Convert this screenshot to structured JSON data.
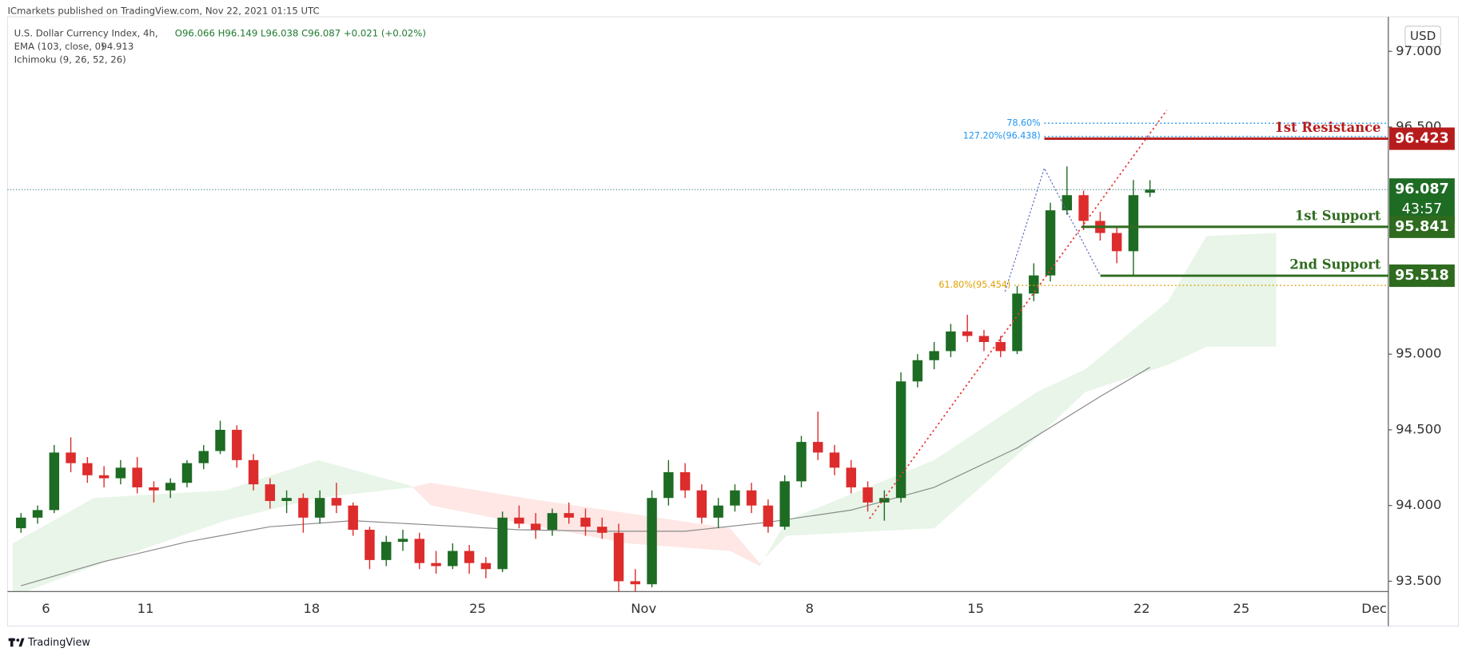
{
  "header": {
    "publisher": "ICmarkets published on TradingView.com, Nov 22, 2021 01:15 UTC",
    "symbol": "U.S. Dollar Currency Index, 4h,",
    "ohlc": "O96.066 H96.149 L96.038 C96.087 +0.021 (+0.02%)"
  },
  "footer": "TradingView",
  "chart_data": {
    "type": "candlestick",
    "currency": "USD",
    "categories": [
      null,
      null,
      "6",
      null,
      null,
      null,
      null,
      null,
      "11",
      null,
      null,
      null,
      null,
      null,
      null,
      null,
      null,
      null,
      "18",
      null,
      null,
      null,
      null,
      null,
      null,
      null,
      null,
      null,
      "25",
      null,
      null,
      null,
      null,
      null,
      null,
      null,
      null,
      null,
      "Nov",
      null,
      null,
      null,
      null,
      null,
      null,
      null,
      null,
      null,
      "8",
      null,
      null,
      null,
      null,
      null,
      null,
      null,
      null,
      null,
      "15",
      null,
      null,
      null,
      null,
      null,
      null,
      null,
      null,
      null,
      "22",
      null,
      null,
      null,
      null,
      null,
      "25",
      null,
      null,
      null,
      null,
      null,
      null,
      null,
      "Dec",
      null
    ],
    "open": [
      93.85,
      93.92,
      93.97,
      94.35,
      94.28,
      94.2,
      94.18,
      94.25,
      94.12,
      94.1,
      94.15,
      94.28,
      94.36,
      94.5,
      94.3,
      94.14,
      94.03,
      94.05,
      93.92,
      94.05,
      94.0,
      93.84,
      93.64,
      93.76,
      93.78,
      93.62,
      93.6,
      93.7,
      93.62,
      93.58,
      93.92,
      93.88,
      93.84,
      93.95,
      93.92,
      93.86,
      93.82,
      93.5,
      93.48,
      94.05,
      94.22,
      94.1,
      93.92,
      94.0,
      94.1,
      94.0,
      93.86,
      94.16,
      94.42,
      94.35,
      94.25,
      94.12,
      94.02,
      94.05,
      94.82,
      94.96,
      95.02,
      95.15,
      95.12,
      95.08,
      95.02,
      95.4,
      95.52,
      95.95,
      96.05,
      95.88,
      95.8,
      95.68,
      96.066,
      null,
      null,
      null,
      null,
      null,
      null,
      null,
      null,
      null,
      null,
      null,
      null,
      null,
      null,
      null
    ],
    "high": [
      93.95,
      94.0,
      94.4,
      94.45,
      94.32,
      94.26,
      94.3,
      94.32,
      94.16,
      94.18,
      94.3,
      94.4,
      94.56,
      94.53,
      94.34,
      94.18,
      94.1,
      94.08,
      94.1,
      94.15,
      94.02,
      93.86,
      93.8,
      93.84,
      93.82,
      93.7,
      93.75,
      93.74,
      93.66,
      93.96,
      94.0,
      93.95,
      93.98,
      94.02,
      93.98,
      93.92,
      93.88,
      93.58,
      94.1,
      94.3,
      94.28,
      94.14,
      94.05,
      94.14,
      94.15,
      94.04,
      94.2,
      94.46,
      94.62,
      94.4,
      94.3,
      94.16,
      94.1,
      94.88,
      95.0,
      95.08,
      95.2,
      95.26,
      95.16,
      95.12,
      95.45,
      95.6,
      96.0,
      96.24,
      96.08,
      95.94,
      95.84,
      96.15,
      96.149,
      null,
      null,
      null,
      null,
      null,
      null,
      null,
      null,
      null,
      null,
      null,
      null,
      null,
      null,
      null
    ],
    "low": [
      93.82,
      93.88,
      93.95,
      94.22,
      94.15,
      94.12,
      94.14,
      94.08,
      94.02,
      94.05,
      94.12,
      94.24,
      94.34,
      94.25,
      94.1,
      93.98,
      93.95,
      93.82,
      93.88,
      93.95,
      93.8,
      93.58,
      93.6,
      93.7,
      93.58,
      93.55,
      93.58,
      93.55,
      93.52,
      93.56,
      93.85,
      93.78,
      93.8,
      93.88,
      93.8,
      93.78,
      93.43,
      93.43,
      93.46,
      94.0,
      94.05,
      93.88,
      93.85,
      93.96,
      93.95,
      93.82,
      93.84,
      94.12,
      94.3,
      94.2,
      94.08,
      93.96,
      93.9,
      94.02,
      94.78,
      94.9,
      94.98,
      95.08,
      95.02,
      94.98,
      95.0,
      95.35,
      95.48,
      95.92,
      95.82,
      95.75,
      95.6,
      95.51,
      96.038,
      null,
      null,
      null,
      null,
      null,
      null,
      null,
      null,
      null,
      null,
      null,
      null,
      null,
      null,
      null
    ],
    "close": [
      93.92,
      93.97,
      94.35,
      94.28,
      94.2,
      94.18,
      94.25,
      94.12,
      94.1,
      94.15,
      94.28,
      94.36,
      94.5,
      94.3,
      94.14,
      94.03,
      94.05,
      93.92,
      94.05,
      94.0,
      93.84,
      93.64,
      93.76,
      93.78,
      93.62,
      93.6,
      93.7,
      93.62,
      93.58,
      93.92,
      93.88,
      93.84,
      93.95,
      93.92,
      93.86,
      93.82,
      93.5,
      93.48,
      94.05,
      94.22,
      94.1,
      93.92,
      94.0,
      94.1,
      94.0,
      93.86,
      94.16,
      94.42,
      94.35,
      94.25,
      94.12,
      94.02,
      94.05,
      94.82,
      94.96,
      95.02,
      95.15,
      95.12,
      95.08,
      95.02,
      95.4,
      95.52,
      95.95,
      96.05,
      95.88,
      95.8,
      95.68,
      96.05,
      96.087,
      null,
      null,
      null,
      null,
      null,
      null,
      null,
      null,
      null,
      null,
      null,
      null,
      null,
      null,
      null
    ],
    "up_color": "#1e6b24",
    "down_color": "#dd2c2c",
    "countdown": "43:57",
    "ylim": [
      93.432,
      97.228
    ],
    "yticks": [
      {
        "value": 93.5,
        "label": "93.500"
      },
      {
        "value": 94,
        "label": "94.000"
      },
      {
        "value": 94.5,
        "label": "94.500"
      },
      {
        "value": 95,
        "label": "95.000"
      },
      {
        "value": 96.5,
        "label": "96.500"
      },
      {
        "value": 97,
        "label": "97.000"
      }
    ],
    "ema": {
      "name": "EMA (103, close, 0)",
      "color": "#8a8a8a",
      "x": [
        0,
        5,
        10,
        15,
        20,
        25,
        30,
        35,
        40,
        45,
        50,
        55,
        60,
        65,
        68
      ],
      "values": [
        93.47,
        93.63,
        93.76,
        93.86,
        93.9,
        93.87,
        93.84,
        93.83,
        93.83,
        93.89,
        93.97,
        94.12,
        94.38,
        94.72,
        94.913
      ]
    },
    "ichimoku": {
      "name": "Ichimoku (9, 26, 52, 26)",
      "up_color": "#4caf50",
      "down_color": "#f44336",
      "x": [
        0,
        4.9,
        12.8,
        18.4,
        24,
        25.2,
        30.8,
        37,
        43.2,
        45,
        46.6,
        55.5,
        61.7,
        64.6,
        69.6,
        71.9,
        76.1
      ],
      "span_a": [
        93.75,
        94.05,
        94.1,
        94.3,
        94.13,
        94.0,
        93.88,
        93.75,
        93.7,
        93.6,
        93.9,
        94.3,
        94.75,
        94.9,
        95.35,
        95.78,
        95.8
      ],
      "span_b": [
        93.4,
        93.6,
        93.9,
        94.05,
        94.12,
        94.15,
        94.05,
        93.95,
        93.85,
        93.62,
        93.8,
        93.85,
        94.45,
        94.75,
        94.93,
        95.05,
        95.05
      ]
    },
    "levels": [
      {
        "label": "1st Resistance",
        "value": 96.423,
        "color": "#b71c1c"
      },
      {
        "label": "1st Support",
        "value": 95.841,
        "color": "#2e6b1f"
      },
      {
        "label": "2nd Support",
        "value": 95.518,
        "color": "#2e6b1f"
      }
    ],
    "fib": [
      {
        "label": "78.60%",
        "value": 96.525,
        "color": "#2196f3"
      },
      {
        "label": "127.20%(96.438)",
        "value": 96.438,
        "color": "#2196f3"
      },
      {
        "label": "61.80%(95.454)",
        "value": 95.454,
        "color": "#e0a000"
      }
    ]
  }
}
